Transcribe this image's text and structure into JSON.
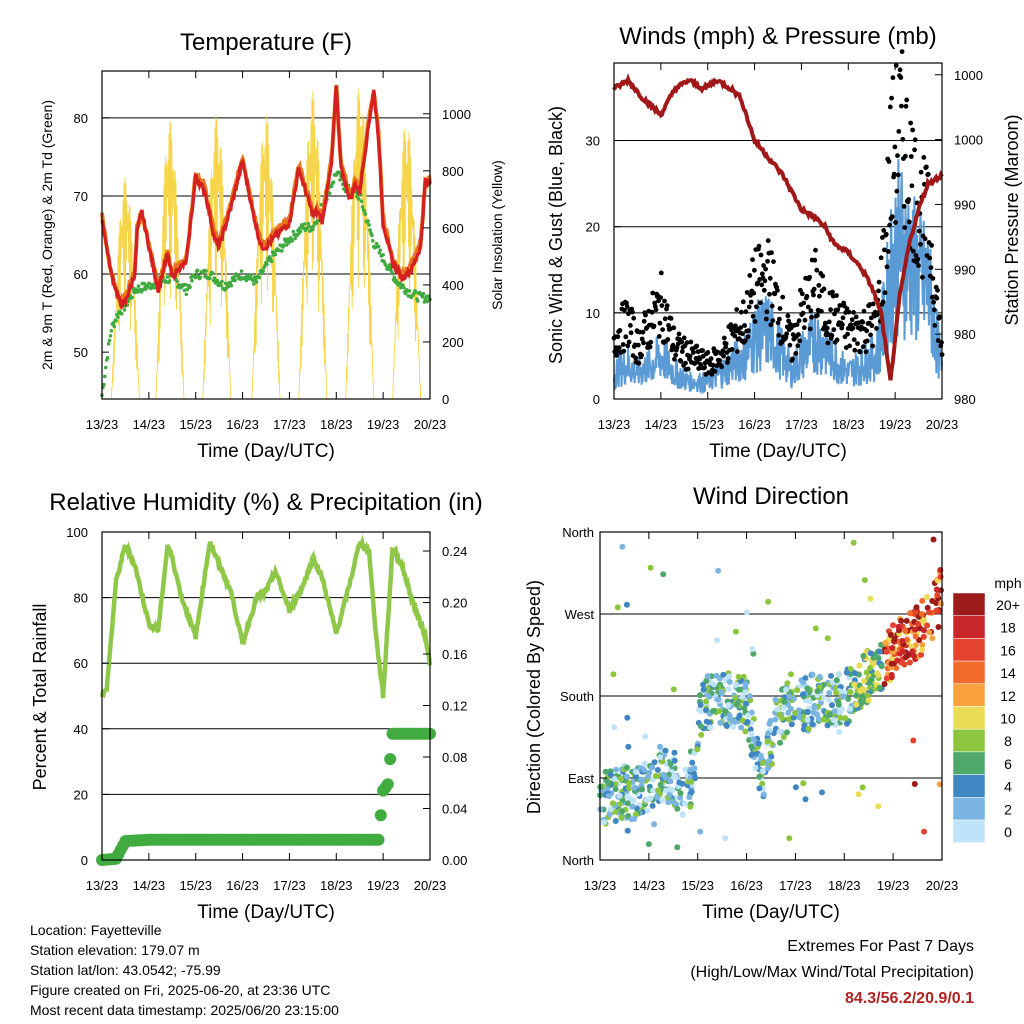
{
  "info": {
    "location": "Location: Fayetteville",
    "elevation": "Station elevation: 179.07 m",
    "latlon": "Station lat/lon: 43.0542; -75.99",
    "created": "Figure created on Fri, 2025-06-20, at 23:36 UTC",
    "recent": "Most recent data timestamp: 2025/06/20 23:15:00",
    "extremes_title": "Extremes For Past 7 Days",
    "extremes_sub": "(High/Low/Max Wind/Total Precipitation)",
    "extremes_values": "84.3/56.2/20.9/0.1"
  },
  "chart_data": [
    {
      "id": "temp",
      "type": "line",
      "title": "Temperature (F)",
      "xlabel": "Time (Day/UTC)",
      "ylabel": "2m & 9m T (Red, Orange) & 2m Td (Green)",
      "y2label": "Solar Insolation (Yellow)",
      "x_ticks": [
        "13/23",
        "14/23",
        "15/23",
        "16/23",
        "17/23",
        "18/23",
        "19/23",
        "20/23"
      ],
      "xlim": [
        0,
        7
      ],
      "ylim": [
        44,
        86
      ],
      "y_ticks": [
        50,
        60,
        70,
        80
      ],
      "y2lim": [
        0,
        1150
      ],
      "y2_ticks": [
        0,
        200,
        400,
        600,
        800,
        1000
      ],
      "grid_y": [
        60,
        70,
        80
      ],
      "series": [
        {
          "color": "#e8771f",
          "x": [
            0,
            0.2,
            0.4,
            0.5,
            0.7,
            0.75,
            0.85,
            1.0,
            1.2,
            1.4,
            1.5,
            1.6,
            1.8,
            2.0,
            2.2,
            2.4,
            2.5,
            2.75,
            3.0,
            3.2,
            3.35,
            3.4,
            3.5,
            3.65,
            3.8,
            4.0,
            4.2,
            4.4,
            4.5,
            4.6,
            4.7,
            4.9,
            5.0,
            5.1,
            5.3,
            5.4,
            5.5,
            5.7,
            5.8,
            5.9,
            6.0,
            6.2,
            6.4,
            6.6,
            6.8,
            6.9,
            7.0
          ],
          "values": [
            67.5,
            60,
            56.5,
            57,
            60.5,
            66,
            68,
            64,
            58,
            63,
            60,
            61,
            62,
            73,
            71,
            65,
            64,
            69,
            75,
            69,
            65,
            64,
            64,
            65,
            66,
            67,
            74,
            70,
            68,
            68.5,
            67,
            75,
            84,
            74,
            70,
            72,
            71,
            80,
            83.5,
            78,
            67,
            62,
            60,
            61,
            64,
            72,
            72
          ]
        },
        {
          "color": "#d42020",
          "x": [
            0,
            0.2,
            0.4,
            0.5,
            0.7,
            0.75,
            0.85,
            1.0,
            1.2,
            1.4,
            1.5,
            1.6,
            1.8,
            2.0,
            2.2,
            2.4,
            2.5,
            2.75,
            3.0,
            3.2,
            3.35,
            3.4,
            3.5,
            3.65,
            3.8,
            4.0,
            4.2,
            4.4,
            4.5,
            4.6,
            4.7,
            4.9,
            5.0,
            5.1,
            5.3,
            5.4,
            5.5,
            5.7,
            5.8,
            5.9,
            6.0,
            6.2,
            6.4,
            6.6,
            6.8,
            6.9,
            7.0
          ],
          "values": [
            67,
            60,
            56,
            56.5,
            60,
            65.5,
            68,
            63.5,
            58,
            62.5,
            59.5,
            60.5,
            61.5,
            72.5,
            70.5,
            64.5,
            63.5,
            68.5,
            74.5,
            68.5,
            64.5,
            63.5,
            63.5,
            64.5,
            65.5,
            66.5,
            73.5,
            69.5,
            67.5,
            68,
            66.5,
            74.5,
            84,
            73.5,
            69.5,
            71.5,
            70.5,
            79.5,
            83.5,
            77.5,
            66.5,
            61.5,
            59.5,
            60.5,
            63.5,
            72,
            71.5
          ]
        },
        {
          "color": "#3faa3f",
          "x": [
            0,
            0.1,
            0.2,
            0.35,
            0.5,
            0.7,
            1.0,
            1.2,
            1.5,
            1.8,
            2.0,
            2.3,
            2.6,
            3.0,
            3.3,
            3.6,
            4.0,
            4.3,
            4.5,
            4.8,
            5.0,
            5.2,
            5.5,
            5.8,
            6.0,
            6.3,
            6.6,
            6.8,
            7.0
          ],
          "values": [
            44.5,
            49,
            53,
            55,
            56,
            58,
            58.5,
            59,
            59.5,
            58,
            60,
            60,
            58.5,
            60,
            59,
            62,
            64.5,
            66,
            66,
            70,
            73,
            71,
            70,
            64,
            62,
            59,
            57.5,
            57,
            57
          ]
        },
        {
          "axis": "y2",
          "color": "#f7d54a",
          "peaks_x": [
            0.5,
            1.45,
            2.45,
            3.5,
            4.5,
            5.5,
            6.5
          ],
          "peaks": [
            780,
            980,
            1000,
            1000,
            1080,
            1100,
            980
          ]
        }
      ]
    },
    {
      "id": "wind",
      "type": "line",
      "title": "Winds (mph) & Pressure (mb)",
      "xlabel": "Time (Day/UTC)",
      "ylabel": "Sonic Wind & Gust (Blue, Black)",
      "y2label": "Station Pressure (Maroon)",
      "x_ticks": [
        "13/23",
        "14/23",
        "15/23",
        "16/23",
        "17/23",
        "18/23",
        "19/23",
        "20/23"
      ],
      "xlim": [
        0,
        7
      ],
      "ylim": [
        0,
        39
      ],
      "y_ticks": [
        0,
        10,
        20,
        30
      ],
      "y2_ticks": [
        "1000",
        "1000",
        "990",
        "990",
        "980",
        "980"
      ],
      "grid_y": [
        10,
        20,
        30
      ],
      "series": [
        {
          "name": "gust",
          "color": "#000000",
          "x": [
            0,
            0.3,
            0.5,
            0.8,
            1.0,
            1.3,
            1.6,
            2.0,
            2.3,
            2.5,
            2.8,
            3.0,
            3.3,
            3.6,
            3.8,
            4.0,
            4.3,
            4.5,
            4.8,
            5.0,
            5.3,
            5.6,
            5.8,
            5.9,
            6.1,
            6.3,
            6.5,
            6.7,
            7.0
          ],
          "values": [
            7,
            9,
            6,
            9,
            11,
            6,
            5,
            4,
            5,
            7,
            9,
            13,
            14,
            9,
            6,
            10,
            13,
            10,
            9,
            8,
            8,
            9,
            18,
            27,
            31,
            27,
            22,
            20,
            6
          ]
        },
        {
          "name": "wind",
          "color": "#5b9bd5",
          "x": [
            0,
            0.3,
            0.5,
            0.8,
            1.0,
            1.3,
            1.6,
            2.0,
            2.3,
            2.5,
            2.8,
            3.0,
            3.3,
            3.6,
            3.8,
            4.0,
            4.3,
            4.5,
            4.8,
            5.0,
            5.3,
            5.6,
            5.8,
            5.9,
            6.1,
            6.3,
            6.5,
            6.7,
            7.0
          ],
          "values": [
            3,
            4,
            3,
            4,
            5,
            3,
            2,
            2,
            3,
            4,
            5,
            7,
            8,
            5,
            3,
            5,
            7,
            6,
            4,
            3,
            4,
            5,
            10,
            15,
            18,
            16,
            14,
            13,
            3
          ]
        },
        {
          "name": "pressure",
          "color": "#a01818",
          "x": [
            0,
            0.3,
            0.6,
            1.0,
            1.3,
            1.6,
            1.9,
            2.2,
            2.5,
            2.7,
            3.0,
            3.3,
            3.6,
            3.8,
            4.0,
            4.3,
            4.5,
            4.7,
            5.0,
            5.3,
            5.5,
            5.7,
            5.9,
            6.1,
            6.3,
            6.5,
            6.7,
            7.0
          ],
          "values": [
            36,
            37,
            35,
            33,
            36,
            37,
            36,
            37,
            36,
            35,
            30,
            28,
            26,
            24,
            22,
            21,
            20,
            18,
            17,
            15,
            13,
            10,
            2,
            12,
            18,
            22,
            25,
            26
          ]
        }
      ]
    },
    {
      "id": "rh",
      "type": "line",
      "title": "Relative Humidity (%) & Precipitation (in)",
      "xlabel": "Time (Day/UTC)",
      "ylabel": "Percent & Total Rainfall",
      "x_ticks": [
        "13/23",
        "14/23",
        "15/23",
        "16/23",
        "17/23",
        "18/23",
        "19/23",
        "20/23"
      ],
      "xlim": [
        0,
        7
      ],
      "ylim": [
        0,
        100
      ],
      "y_ticks": [
        0,
        20,
        40,
        60,
        80,
        100
      ],
      "y2_ticks": [
        "0.00",
        "0.04",
        "0.08",
        "0.12",
        "0.16",
        "0.20",
        "0.24"
      ],
      "grid_y": [
        20,
        40,
        60,
        80
      ],
      "series": [
        {
          "name": "rh",
          "color": "#8fc849",
          "x": [
            0,
            0.1,
            0.3,
            0.5,
            0.7,
            1.0,
            1.2,
            1.4,
            1.5,
            1.7,
            2.0,
            2.3,
            2.5,
            2.75,
            3.0,
            3.3,
            3.5,
            3.7,
            4.0,
            4.3,
            4.5,
            4.7,
            5.0,
            5.3,
            5.5,
            5.7,
            5.85,
            6.0,
            6.2,
            6.4,
            6.6,
            6.9,
            7.0
          ],
          "values": [
            50,
            52,
            85,
            96,
            90,
            72,
            70,
            96,
            92,
            80,
            68,
            97,
            90,
            82,
            66,
            80,
            82,
            88,
            76,
            84,
            92,
            86,
            69,
            85,
            97,
            94,
            68,
            50,
            95,
            90,
            80,
            68,
            60
          ]
        },
        {
          "name": "precip",
          "color": "#41ab3f",
          "x": [
            0,
            0.3,
            0.5,
            1.0,
            2.0,
            3.0,
            4.0,
            5.0,
            5.9,
            6.0,
            6.1,
            6.2,
            6.3,
            6.5,
            7.0
          ],
          "values": [
            0,
            0.001,
            0.015,
            0.016,
            0.016,
            0.016,
            0.016,
            0.016,
            0.016,
            0.055,
            0.06,
            0.1,
            0.1,
            0.1,
            0.1
          ]
        }
      ]
    },
    {
      "id": "dir",
      "type": "scatter",
      "title": "Wind Direction",
      "xlabel": "Time (Day/UTC)",
      "ylabel": "Direction (Colored By Speed)",
      "x_ticks": [
        "13/23",
        "14/23",
        "15/23",
        "16/23",
        "17/23",
        "18/23",
        "19/23",
        "20/23"
      ],
      "xlim": [
        0,
        7
      ],
      "y_labels": [
        "North",
        "East",
        "South",
        "West",
        "North"
      ],
      "ylim": [
        0,
        360
      ],
      "grid_y": [
        90,
        180,
        270
      ],
      "legend_title": "mph",
      "legend_labels": [
        "20+",
        "18",
        "16",
        "14",
        "12",
        "10",
        "8",
        "6",
        "4",
        "2",
        "0"
      ],
      "legend_colors": [
        "#9e1b1b",
        "#c9262a",
        "#e4432d",
        "#f26b2a",
        "#f9a13f",
        "#eadb56",
        "#8cc63f",
        "#4da86a",
        "#3f86c2",
        "#7ab4e0",
        "#bfe3f8"
      ],
      "centers_x": [
        0,
        0.3,
        0.6,
        0.9,
        1.2,
        1.5,
        1.8,
        2.1,
        2.4,
        2.7,
        3.0,
        3.3,
        3.6,
        3.9,
        4.2,
        4.5,
        4.8,
        5.1,
        5.4,
        5.7,
        6.0,
        6.3,
        6.6,
        6.9,
        7.0
      ],
      "centers_y": [
        60,
        80,
        70,
        75,
        95,
        90,
        70,
        170,
        180,
        175,
        170,
        90,
        150,
        175,
        170,
        180,
        175,
        180,
        200,
        205,
        230,
        245,
        255,
        280,
        300
      ]
    }
  ]
}
